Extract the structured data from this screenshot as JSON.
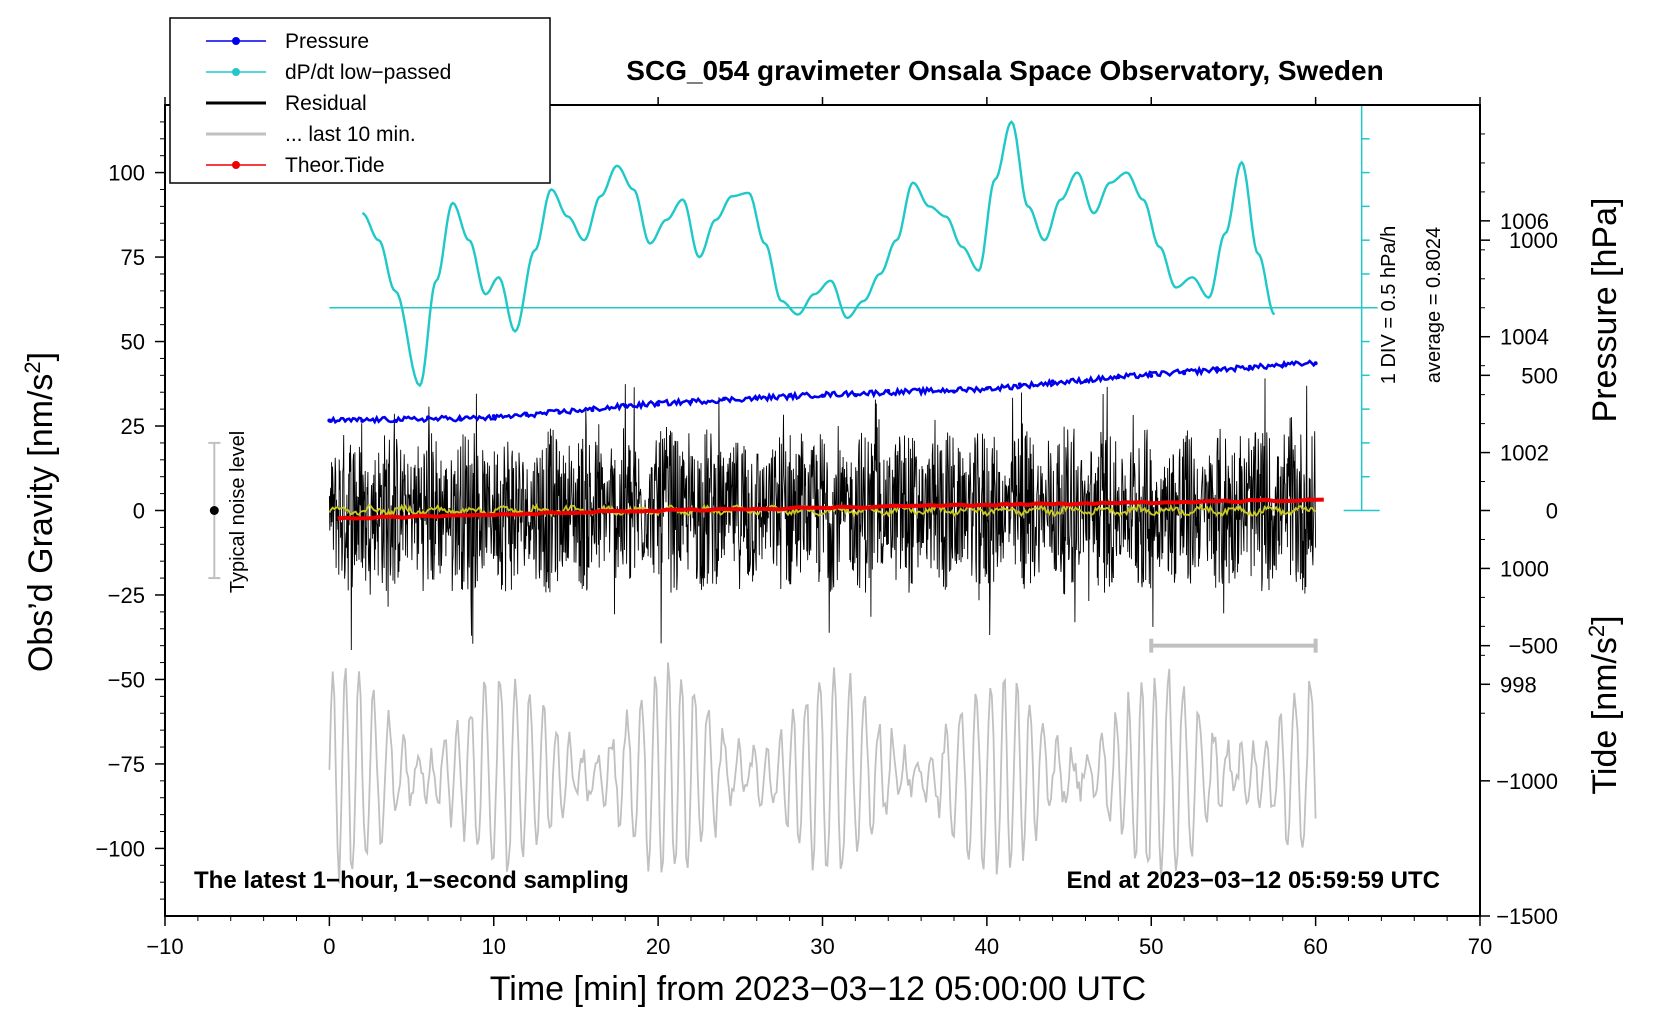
{
  "chart_data": {
    "type": "line",
    "title": "SCG_054 gravimeter Onsala Space Observatory, Sweden",
    "xlabel": "Time [min] from 2023−03−12 05:00:00 UTC",
    "xlim": [
      -10,
      70
    ],
    "x_ticks": [
      -10,
      0,
      10,
      20,
      30,
      40,
      50,
      60,
      70
    ],
    "x_tick_labels": [
      "−10",
      "0",
      "10",
      "20",
      "30",
      "40",
      "50",
      "60",
      "70"
    ],
    "left_axis": {
      "label_base": "Obs’d Gravity [nm/s",
      "label_sup": "2",
      "label_end": "]",
      "ylim": [
        -120,
        120
      ],
      "ticks": [
        100,
        75,
        50,
        25,
        0,
        -25,
        -50,
        -75,
        -100
      ],
      "tick_labels": [
        "100",
        "75",
        "50",
        "25",
        "0",
        "−25",
        "−50",
        "−75",
        "−100"
      ]
    },
    "pressure_axis": {
      "label": "Pressure [hPa]",
      "range_hPa": [
        994,
        1008
      ],
      "ticks": [
        1006,
        1004,
        1002,
        1000,
        998
      ],
      "tick_labels": [
        "1006",
        "1004",
        "1002",
        "1000",
        "998"
      ]
    },
    "tide_axis": {
      "label_base": "Tide [nm/s",
      "label_sup": "2",
      "label_end": "]",
      "range": [
        -1500,
        1500
      ],
      "ticks": [
        1000,
        500,
        0,
        -500,
        -1000,
        -1500
      ],
      "tick_labels": [
        "1000",
        "500",
        "0",
        "−500",
        "−1000",
        "−1500"
      ]
    },
    "dpdt_scale": {
      "text1": "1 DIV = 0.5 hPa/h",
      "text2": "average = 0.8024",
      "x_min": 62.8,
      "divisions": 12,
      "top_value": 120,
      "bottom_value": 0,
      "reference_level": 60
    },
    "noise_bar": {
      "label": "Typical noise level",
      "x_min": -7,
      "center": 0,
      "half_width": 20
    },
    "series": [
      {
        "name": "Pressure",
        "color": "#0000ee",
        "axis": "pressure_hPa",
        "x": [
          0,
          10,
          20,
          30,
          40,
          50,
          60
        ],
        "values": [
          1002.55,
          1002.6,
          1002.85,
          1003.0,
          1003.1,
          1003.35,
          1003.55
        ]
      },
      {
        "name": "dP/dt low−passed",
        "color": "#20c8c8",
        "axis": "gravity_scale",
        "x": [
          2,
          3,
          4,
          5.5,
          6.5,
          7.5,
          8.5,
          9.5,
          10.3,
          11.3,
          12.5,
          13.5,
          14.5,
          15.5,
          16.5,
          17.5,
          18.5,
          19.5,
          20.5,
          21.5,
          22.5,
          23.5,
          24.5,
          25.5,
          26.5,
          27.5,
          28.5,
          29.5,
          30.5,
          31.5,
          32.5,
          33.5,
          34.5,
          35.5,
          36.5,
          37.5,
          38.5,
          39.5,
          40.5,
          41.5,
          42.5,
          43.5,
          44.5,
          45.5,
          46.5,
          47.5,
          48.5,
          49.5,
          50.5,
          51.5,
          52.5,
          53.5,
          54.5,
          55.5,
          56.5,
          57.5
        ],
        "values": [
          88,
          80,
          65,
          37,
          68,
          91,
          80,
          64,
          69,
          53,
          77,
          95,
          87,
          80,
          93,
          102,
          95,
          79,
          86,
          92,
          75,
          86,
          93,
          94,
          79,
          62,
          58,
          64,
          68,
          57,
          62,
          70,
          80,
          97,
          90,
          87,
          78,
          71,
          98,
          115,
          90,
          80,
          92,
          100,
          88,
          97,
          100,
          92,
          78,
          66,
          69,
          63,
          82,
          103,
          76,
          58
        ]
      },
      {
        "name": "Residual",
        "color": "#000000",
        "axis": "gravity",
        "x": [
          0,
          10,
          20,
          30,
          40,
          50,
          60
        ],
        "values": [
          0,
          0,
          0,
          0,
          0,
          0,
          0
        ],
        "amplitude": 25
      },
      {
        "name": "... last 10 min.",
        "color": "#c0c0c0",
        "axis": "gravity",
        "x": [
          50,
          60
        ],
        "values": [
          -40,
          -40
        ]
      },
      {
        "name": "Theor.Tide",
        "color": "#ee0000",
        "axis": "tide",
        "x": [
          0,
          20,
          40,
          60
        ],
        "values": [
          -30,
          0,
          20,
          40
        ]
      },
      {
        "name": "Residual smoothed",
        "color": "#c8c820",
        "axis": "gravity",
        "x": [
          0,
          60
        ],
        "values": [
          0,
          0
        ]
      },
      {
        "name": "Raw gravity",
        "color": "#c0c0c0",
        "axis": "gravity",
        "x": [
          0,
          60
        ],
        "values": [
          -78,
          -78
        ],
        "amplitude": 30
      }
    ],
    "legend": {
      "placement": "top-left",
      "entries": [
        {
          "label": "Pressure",
          "color": "#0000ee",
          "marker": true
        },
        {
          "label": "dP/dt low−passed",
          "color": "#20c8c8",
          "marker": true
        },
        {
          "label": "Residual",
          "color": "#000000",
          "marker": false
        },
        {
          "label": "... last 10 min.",
          "color": "#c0c0c0",
          "marker": false
        },
        {
          "label": "Theor.Tide",
          "color": "#ee0000",
          "marker": true
        }
      ]
    },
    "annotations": {
      "bottom_left": "The latest 1−hour, 1−second sampling",
      "bottom_right": "End at 2023−03−12 05:59:59 UTC"
    }
  }
}
